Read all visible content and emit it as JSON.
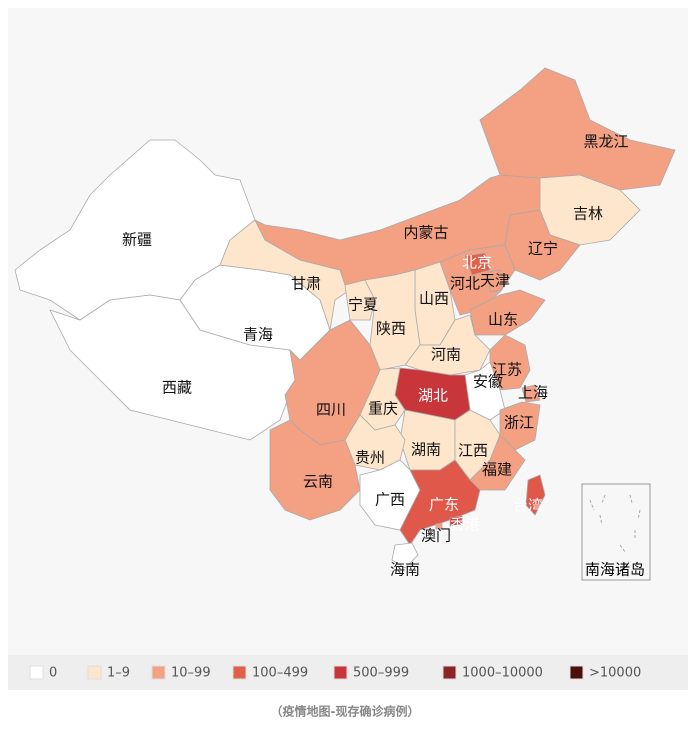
{
  "regions": [
    {
      "name": "新疆",
      "color": "#ffffff"
    },
    {
      "name": "西藏",
      "color": "#ffffff"
    },
    {
      "name": "青海",
      "color": "#ffffff"
    },
    {
      "name": "甘肃",
      "color": "#fde6cc"
    },
    {
      "name": "内蒙古",
      "color": "#f3a083"
    },
    {
      "name": "黑龙江",
      "color": "#f3a083"
    },
    {
      "name": "吉林",
      "color": "#fde6cc"
    },
    {
      "name": "辽宁",
      "color": "#f3a083"
    },
    {
      "name": "河北",
      "color": "#f3a083"
    },
    {
      "name": "北京",
      "color": "#e0604a"
    },
    {
      "name": "天津",
      "color": "#f3a083"
    },
    {
      "name": "山西",
      "color": "#fde6cc"
    },
    {
      "name": "宁夏",
      "color": "#fde6cc"
    },
    {
      "name": "陕西",
      "color": "#fde6cc"
    },
    {
      "name": "山东",
      "color": "#f3a083"
    },
    {
      "name": "河南",
      "color": "#fde6cc"
    },
    {
      "name": "江苏",
      "color": "#f3a083"
    },
    {
      "name": "安徽",
      "color": "#ffffff"
    },
    {
      "name": "上海",
      "color": "#f3a083"
    },
    {
      "name": "湖北",
      "color": "#c8363a"
    },
    {
      "name": "重庆",
      "color": "#fde6cc"
    },
    {
      "name": "四川",
      "color": "#f3a083"
    },
    {
      "name": "浙江",
      "color": "#f3a083"
    },
    {
      "name": "湖南",
      "color": "#fde6cc"
    },
    {
      "name": "江西",
      "color": "#fde6cc"
    },
    {
      "name": "福建",
      "color": "#f3a083"
    },
    {
      "name": "贵州",
      "color": "#fde6cc"
    },
    {
      "name": "云南",
      "color": "#f3a083"
    },
    {
      "name": "广西",
      "color": "#ffffff"
    },
    {
      "name": "广东",
      "color": "#e0584a"
    },
    {
      "name": "香港",
      "color": "#d04040"
    },
    {
      "name": "澳门",
      "color": "#f3a083"
    },
    {
      "name": "台湾",
      "color": "#e0584a"
    },
    {
      "name": "海南",
      "color": "#ffffff"
    }
  ],
  "inset_label": "南海诸岛",
  "legend": [
    {
      "label": "0",
      "color": "#ffffff"
    },
    {
      "label": "1–9",
      "color": "#fde6cc"
    },
    {
      "label": "10–99",
      "color": "#f3a083"
    },
    {
      "label": "100–499",
      "color": "#e0604a"
    },
    {
      "label": "500–999",
      "color": "#c8363a"
    },
    {
      "label": "1000–10000",
      "color": "#8c2626"
    },
    {
      "label": ">10000",
      "color": "#4a0e0e"
    }
  ],
  "caption": "（疫情地图-现存确诊病例）"
}
